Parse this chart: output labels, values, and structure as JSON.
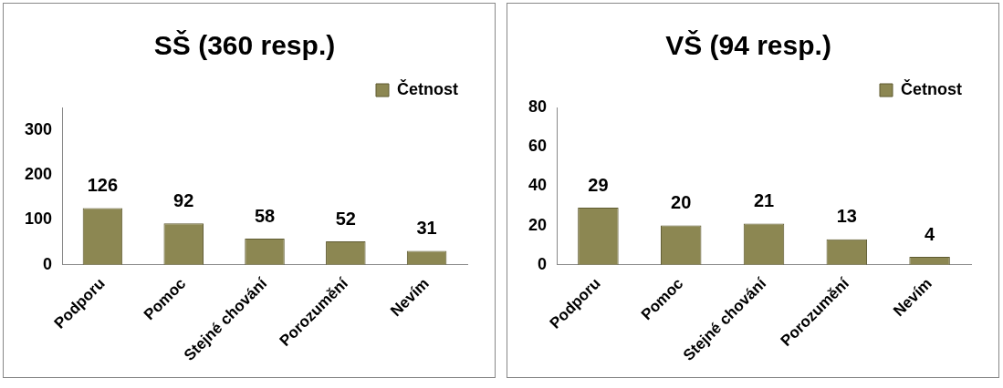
{
  "chart_data": [
    {
      "type": "bar",
      "title": "SŠ (360 resp.)",
      "categories": [
        "Podporu",
        "Pomoc",
        "Stejné chování",
        "Porozumění",
        "Nevím"
      ],
      "series": [
        {
          "name": "Četnost",
          "color": "#8c8752",
          "values": [
            126,
            92,
            58,
            52,
            31
          ]
        }
      ],
      "ylim": [
        0,
        350
      ],
      "yticks": [
        0,
        100,
        200,
        300
      ],
      "grid": false,
      "legend": "top right",
      "data_labels": true
    },
    {
      "type": "bar",
      "title": "VŠ (94 resp.)",
      "categories": [
        "Podporu",
        "Pomoc",
        "Stejné chování",
        "Porozumění",
        "Nevím"
      ],
      "series": [
        {
          "name": "Četnost",
          "color": "#8c8752",
          "values": [
            29,
            20,
            21,
            13,
            4
          ]
        }
      ],
      "ylim": [
        0,
        80
      ],
      "yticks": [
        0,
        20,
        40,
        60,
        80
      ],
      "grid": false,
      "legend": "top right",
      "data_labels": true
    }
  ]
}
